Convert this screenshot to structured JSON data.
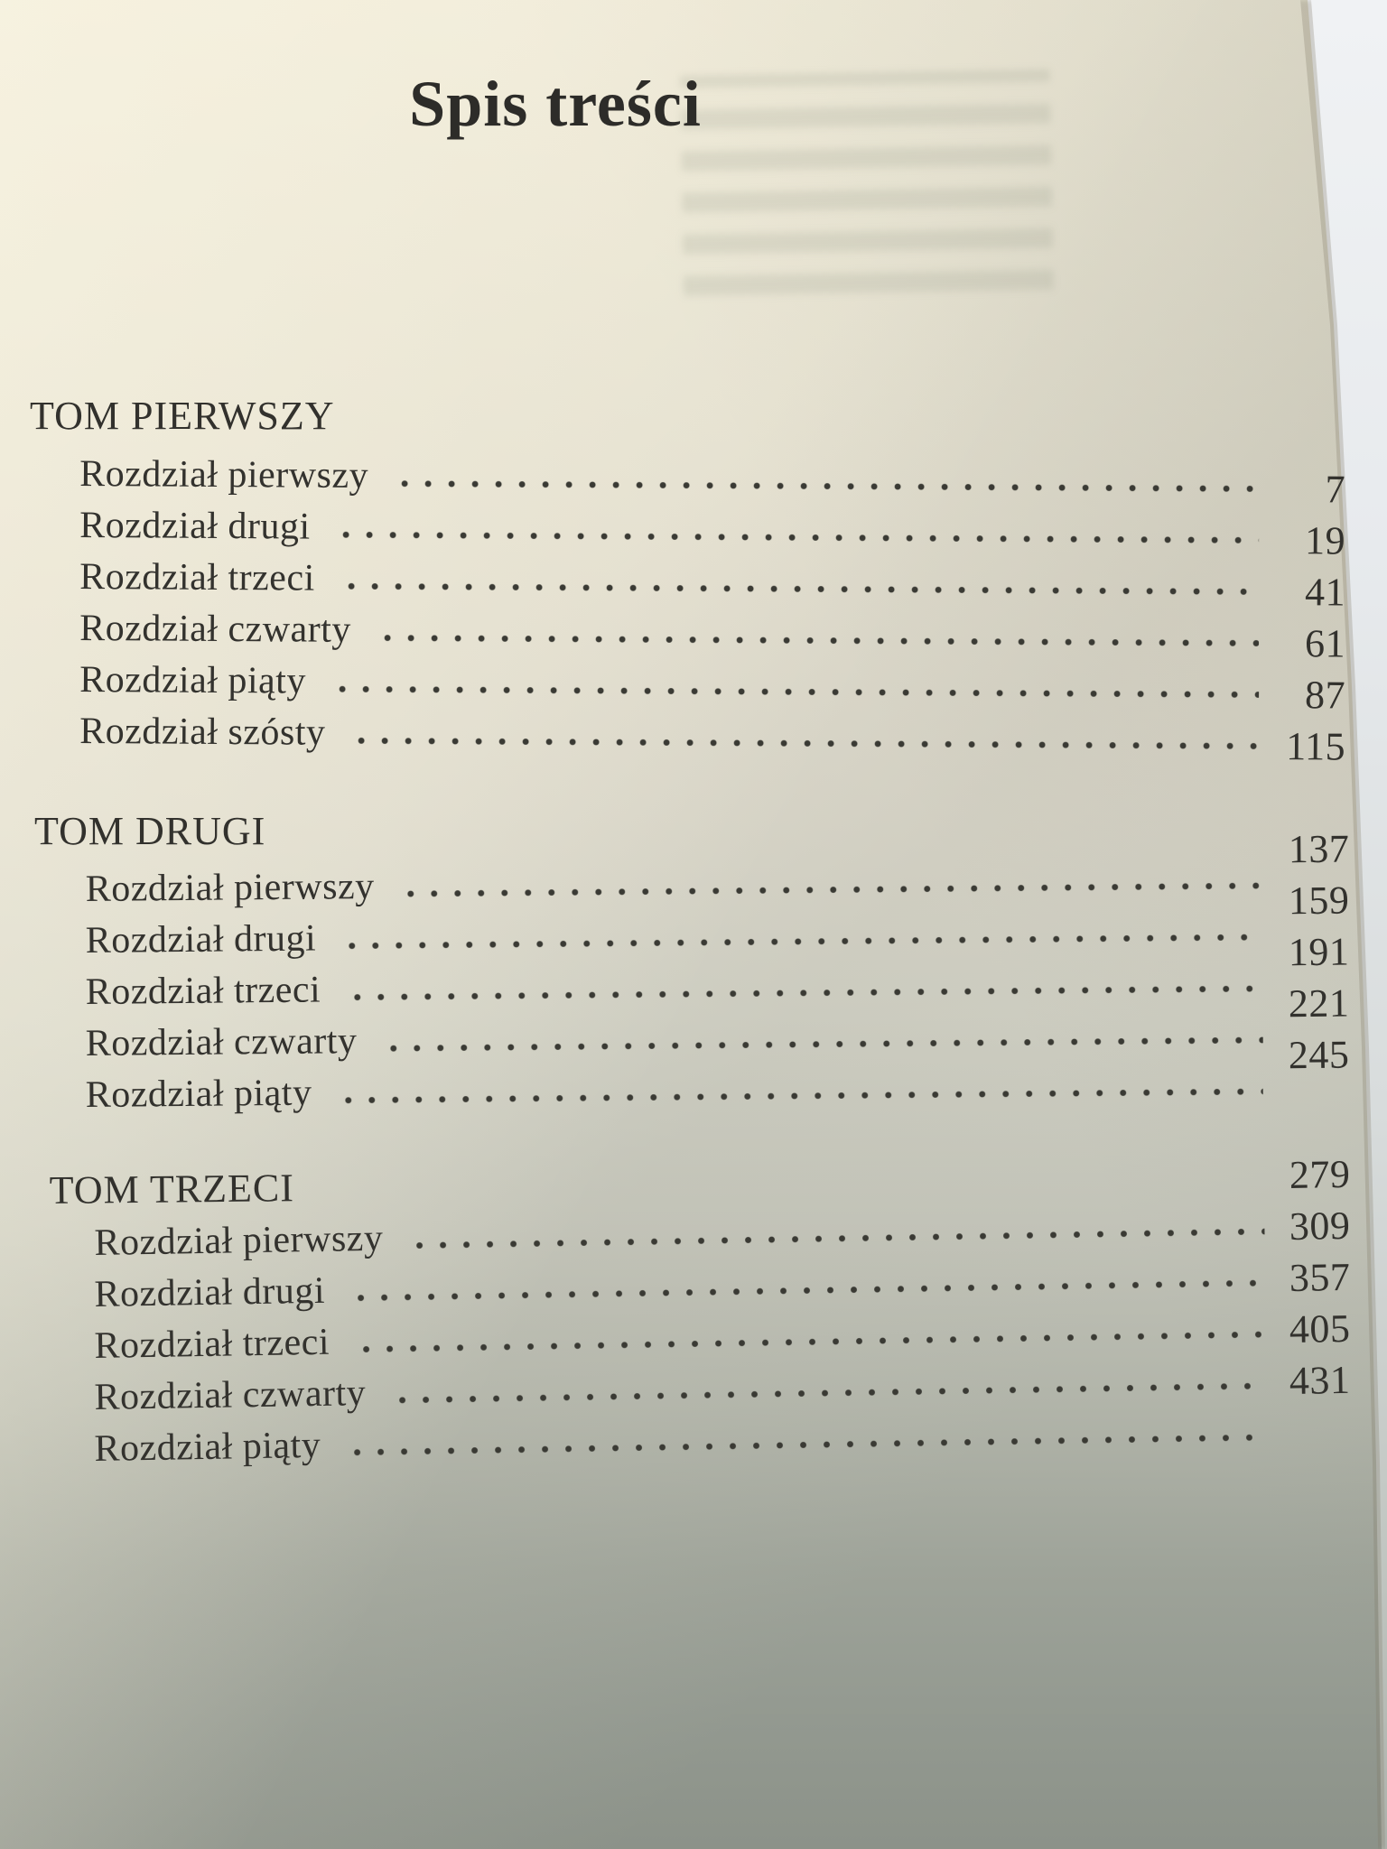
{
  "page": {
    "title": "Spis treści",
    "sections": [
      {
        "heading": "TOM PIERWSZY",
        "entries": [
          {
            "label": "Rozdział pierwszy",
            "page": "7"
          },
          {
            "label": "Rozdział drugi",
            "page": "19"
          },
          {
            "label": "Rozdział trzeci",
            "page": "41"
          },
          {
            "label": "Rozdział czwarty",
            "page": "61"
          },
          {
            "label": "Rozdział piąty",
            "page": "87"
          },
          {
            "label": "Rozdział szósty",
            "page": "115"
          }
        ]
      },
      {
        "heading": "TOM DRUGI",
        "entries": [
          {
            "label": "Rozdział pierwszy",
            "page": "137"
          },
          {
            "label": "Rozdział drugi",
            "page": "159"
          },
          {
            "label": "Rozdział trzeci",
            "page": "191"
          },
          {
            "label": "Rozdział czwarty",
            "page": "221"
          },
          {
            "label": "Rozdział piąty",
            "page": "245"
          }
        ]
      },
      {
        "heading": "TOM TRZECI",
        "entries": [
          {
            "label": "Rozdział pierwszy",
            "page": "279"
          },
          {
            "label": "Rozdział drugi",
            "page": "309"
          },
          {
            "label": "Rozdział trzeci",
            "page": "357"
          },
          {
            "label": "Rozdział czwarty",
            "page": "405"
          },
          {
            "label": "Rozdział piąty",
            "page": "431"
          }
        ]
      }
    ]
  },
  "colors": {
    "ink": "#33322e",
    "paper_light": "#e7e2d0",
    "paper_dark": "#8c9289",
    "edge_white": "#f0f2f4"
  }
}
